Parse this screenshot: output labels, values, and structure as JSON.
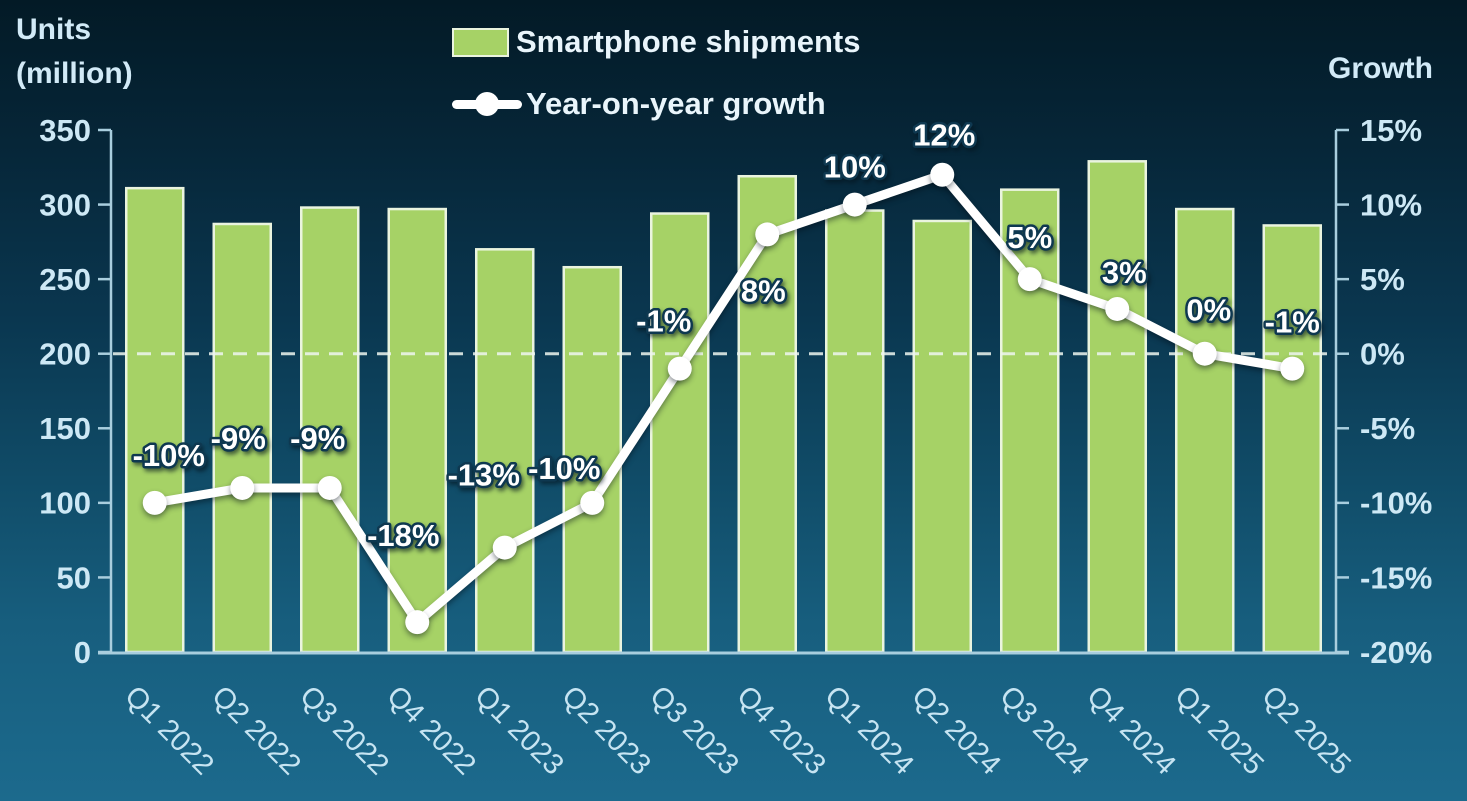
{
  "header": {
    "left_axis_title_line1": "Units",
    "left_axis_title_line2": "(million)",
    "right_axis_title": "Growth"
  },
  "legend": [
    {
      "label": "Smartphone shipments",
      "marker": "green-bar-swatch"
    },
    {
      "label": "Year-on-year growth",
      "marker": "white-line-with-dot"
    }
  ],
  "colors": {
    "background_top": "#031a26",
    "background_bottom": "#1c6a8d",
    "bar_fill": "#a6d266",
    "bar_border": "#eaf4df",
    "growth_line": "#ffffff",
    "axis_line": "#a9cede",
    "axis_text": "#cde8f5",
    "x_label_text": "#c6e4f2",
    "data_label_text": "#ffffff",
    "data_label_outline": "#0e3850",
    "zero_dashed_line": "#eef6f0"
  },
  "chart_data": {
    "type": "combo-bar-line",
    "title": "",
    "categories": [
      "Q1 2022",
      "Q2 2022",
      "Q3 2022",
      "Q4 2022",
      "Q1 2023",
      "Q2 2023",
      "Q3 2023",
      "Q4 2023",
      "Q1 2024",
      "Q2 2024",
      "Q3 2024",
      "Q4 2024",
      "Q1 2025",
      "Q2 2025"
    ],
    "series": [
      {
        "name": "Smartphone shipments",
        "type": "bar",
        "axis": "left",
        "unit": "million units",
        "values": [
          311,
          287,
          298,
          297,
          270,
          258,
          294,
          319,
          296,
          289,
          310,
          329,
          297,
          286
        ]
      },
      {
        "name": "Year-on-year growth",
        "type": "line",
        "axis": "right",
        "unit": "percent",
        "values": [
          -10,
          -9,
          -9,
          -18,
          -13,
          -10,
          -1,
          8,
          10,
          12,
          5,
          3,
          0,
          -1
        ],
        "labels": [
          "-10%",
          "-9%",
          "-9%",
          "-18%",
          "-13%",
          "-10%",
          "-1%",
          "8%",
          "10%",
          "12%",
          "5%",
          "3%",
          "0%",
          "-1%"
        ]
      }
    ],
    "left_axis": {
      "title": "Units (million)",
      "min": 0,
      "max": 350,
      "step": 50,
      "tick_labels": [
        "350",
        "300",
        "250",
        "200",
        "150",
        "100",
        "50",
        "0"
      ]
    },
    "right_axis": {
      "title": "Growth",
      "min": -20,
      "max": 15,
      "step": 5,
      "tick_labels": [
        "15%",
        "10%",
        "5%",
        "0%",
        "-5%",
        "-10%",
        "-15%",
        "-20%"
      ]
    },
    "gridlines": "none",
    "zero_growth_dashed_line": true,
    "legend_position": "top-center"
  }
}
